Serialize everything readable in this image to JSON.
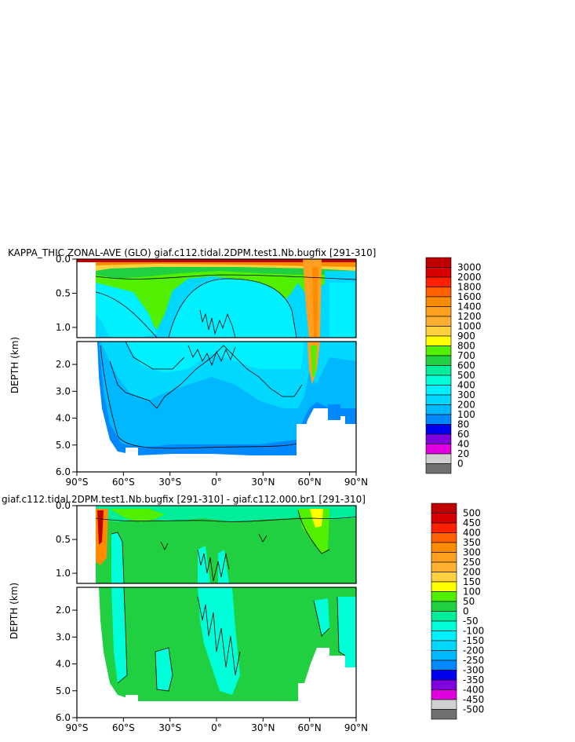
{
  "chart_data": [
    {
      "type": "heatmap",
      "title": "KAPPA_THIC ZONAL-AVE (GLO) giaf.c112.tidal.2DPM.test1.Nb.bugfix [291-310]",
      "ylabel": "DEPTH (km)",
      "x_ticks": [
        "90°S",
        "60°S",
        "30°S",
        "0°",
        "30°N",
        "60°N",
        "90°N"
      ],
      "y_ticks_upper": [
        "0.0",
        "0.5",
        "1.0"
      ],
      "y_ticks_lower": [
        "2.0",
        "3.0",
        "4.0",
        "5.0",
        "6.0"
      ],
      "xlim": [
        -90,
        90
      ],
      "ylim_upper": [
        0,
        1.15
      ],
      "ylim_lower": [
        1.15,
        6.0
      ],
      "colorbar_levels": [
        "3000",
        "2000",
        "1800",
        "1600",
        "1400",
        "1200",
        "1000",
        "900",
        "800",
        "700",
        "600",
        "500",
        "400",
        "300",
        "200",
        "100",
        "80",
        "60",
        "40",
        "20",
        "0"
      ],
      "colorbar_colors": [
        "#c00000",
        "#d80000",
        "#ff2000",
        "#ff6000",
        "#ff8c00",
        "#ffa020",
        "#ffb030",
        "#ffd040",
        "#ffff00",
        "#50f000",
        "#20d040",
        "#00ee99",
        "#00ffd8",
        "#00f0ff",
        "#00d8ff",
        "#00b8ff",
        "#0088ff",
        "#0000f0",
        "#8000e0",
        "#e000e0",
        "#d0d0d0",
        "#707070"
      ]
    },
    {
      "type": "heatmap",
      "title": "giaf.c112.tidal.2DPM.test1.Nb.bugfix [291-310] - giaf.c112.000.br1 [291-310]",
      "ylabel": "DEPTH (km)",
      "x_ticks": [
        "90°S",
        "60°S",
        "30°S",
        "0°",
        "30°N",
        "60°N",
        "90°N"
      ],
      "y_ticks_upper": [
        "0.0",
        "0.5",
        "1.0"
      ],
      "y_ticks_lower": [
        "2.0",
        "3.0",
        "4.0",
        "5.0",
        "6.0"
      ],
      "xlim": [
        -90,
        90
      ],
      "ylim_upper": [
        0,
        1.15
      ],
      "ylim_lower": [
        1.15,
        6.0
      ],
      "colorbar_levels": [
        "500",
        "450",
        "400",
        "350",
        "300",
        "250",
        "200",
        "150",
        "100",
        "50",
        "0",
        "-50",
        "-100",
        "-150",
        "-200",
        "-250",
        "-300",
        "-350",
        "-400",
        "-450",
        "-500"
      ],
      "colorbar_colors": [
        "#c00000",
        "#d80000",
        "#ff2000",
        "#ff6000",
        "#ff8c00",
        "#ffa020",
        "#ffb030",
        "#ffd040",
        "#ffff00",
        "#50f000",
        "#20d040",
        "#00ee99",
        "#00ffd8",
        "#00f0ff",
        "#00d8ff",
        "#00b8ff",
        "#0088ff",
        "#0000f0",
        "#8000e0",
        "#e000e0",
        "#d0d0d0",
        "#707070"
      ]
    }
  ]
}
